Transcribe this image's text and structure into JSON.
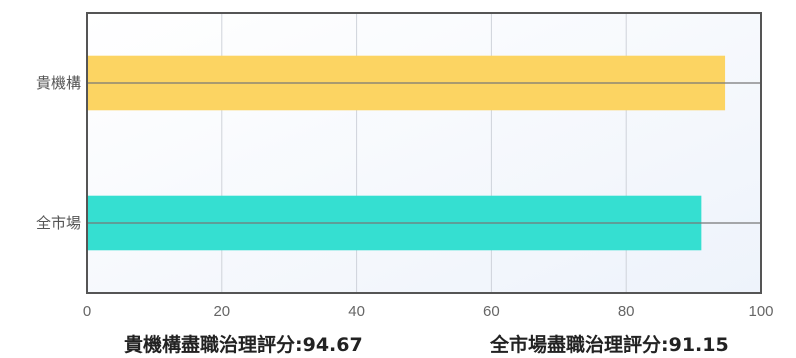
{
  "chart_data": {
    "type": "bar",
    "orientation": "horizontal",
    "categories": [
      "貴機構",
      "全市場"
    ],
    "values": [
      94.67,
      91.15
    ],
    "colors": [
      "#fcd462",
      "#35dfd1"
    ],
    "xlim": [
      0,
      100
    ],
    "xticks": [
      0,
      20,
      40,
      60,
      80,
      100
    ],
    "grid": true,
    "title": "",
    "xlabel": "",
    "ylabel": ""
  },
  "footer": {
    "own_label": "貴機構盡職治理評分:94.67",
    "market_label": "全市場盡職治理評分:91.15"
  }
}
